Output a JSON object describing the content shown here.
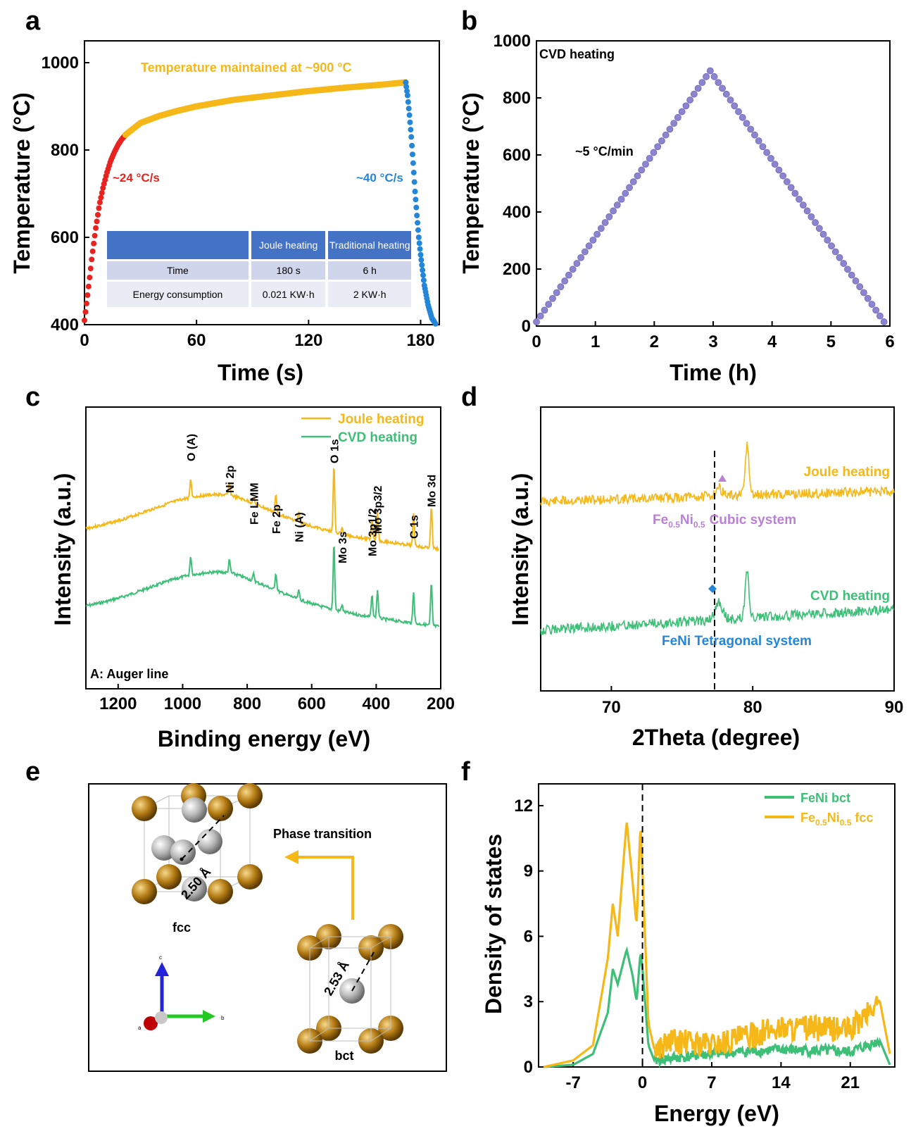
{
  "panels": {
    "a": "a",
    "b": "b",
    "c": "c",
    "d": "d",
    "e": "e",
    "f": "f"
  },
  "chart_data": [
    {
      "panel": "a",
      "type": "scatter",
      "xlabel": "Time (s)",
      "ylabel": "Temperature (°C)",
      "xlim": [
        0,
        190
      ],
      "ylim": [
        400,
        1050
      ],
      "xticks": [
        "0",
        "60",
        "120",
        "180"
      ],
      "yticks": [
        "400",
        "600",
        "800",
        "1000"
      ],
      "annotations": {
        "maintained": "Temperature maintained at ~900 °C",
        "heat_rate": "~24 °C/s",
        "cool_rate": "~40 °C/s"
      },
      "series": [
        {
          "name": "heating",
          "color": "#e8231f",
          "x": [
            0,
            2,
            4,
            6,
            8,
            10,
            12,
            14,
            16,
            18,
            20,
            22
          ],
          "y": [
            410,
            480,
            555,
            620,
            675,
            715,
            748,
            775,
            795,
            812,
            825,
            835
          ]
        },
        {
          "name": "holding",
          "color": "#f5b818",
          "x": [
            22,
            30,
            40,
            50,
            60,
            80,
            100,
            120,
            140,
            160,
            172
          ],
          "y": [
            835,
            862,
            878,
            890,
            900,
            915,
            925,
            935,
            943,
            950,
            955
          ]
        },
        {
          "name": "cooling",
          "color": "#2386d8",
          "x": [
            172,
            173,
            174,
            175,
            176,
            177,
            178,
            179,
            180,
            182,
            184,
            186,
            188
          ],
          "y": [
            955,
            925,
            880,
            830,
            770,
            705,
            650,
            600,
            560,
            490,
            445,
            415,
            402
          ]
        }
      ],
      "table": {
        "headers": [
          "",
          "Joule heating",
          "Traditional heating"
        ],
        "rows": [
          [
            "Time",
            "180 s",
            "6 h"
          ],
          [
            "Energy consumption",
            "0.021 KW·h",
            "2 KW·h"
          ]
        ]
      }
    },
    {
      "panel": "b",
      "type": "scatter",
      "xlabel": "Time (h)",
      "ylabel": "Temperature (°C)",
      "xlim": [
        0,
        6
      ],
      "ylim": [
        0,
        1000
      ],
      "xticks": [
        "0",
        "1",
        "2",
        "3",
        "4",
        "5",
        "6"
      ],
      "yticks": [
        "0",
        "200",
        "400",
        "600",
        "800",
        "1000"
      ],
      "legend": "CVD heating",
      "annotation": "~5 °C/min",
      "series": [
        {
          "name": "CVD heating",
          "color": "#8b84cf",
          "x": [
            0,
            2.95,
            5.9
          ],
          "y": [
            15,
            895,
            15
          ]
        }
      ]
    },
    {
      "panel": "c",
      "type": "line",
      "xlabel": "Binding energy (eV)",
      "ylabel": "Intensity (a.u.)",
      "xlim": [
        1300,
        200
      ],
      "xticks": [
        "1200",
        "1000",
        "800",
        "600",
        "400",
        "200"
      ],
      "note": "A: Auger line",
      "peaks": [
        "O (A)",
        "Ni 2p",
        "Fe LMM",
        "Fe 2p",
        "Ni (A)",
        "O 1s",
        "Mo 3s",
        "Mo 3p1/2",
        "Mo 3p3/2",
        "C 1s",
        "Mo 3d"
      ],
      "peak_positions": [
        975,
        855,
        780,
        711,
        640,
        531,
        506,
        413,
        396,
        284,
        229
      ],
      "series": [
        {
          "name": "Joule heating",
          "color": "#f5b818"
        },
        {
          "name": "CVD heating",
          "color": "#3dbf78"
        }
      ]
    },
    {
      "panel": "d",
      "type": "line",
      "xlabel": "2Theta (degree)",
      "ylabel": "Intensity (a.u.)",
      "xlim": [
        65,
        90
      ],
      "xticks": [
        "70",
        "80",
        "90"
      ],
      "dashed_line_x": 77.3,
      "labels": {
        "cubic_phase": "Fe",
        "cubic_sub": "0.5",
        "cubic_ni": "Ni",
        "cubic_sub2": "0.5",
        "cubic_system": "Cubic system",
        "tetragonal": "FeNi Tetragonal system"
      },
      "peak_positions": [
        77.6,
        79.6
      ],
      "series": [
        {
          "name": "Joule heating",
          "color": "#f5b818"
        },
        {
          "name": "CVD heating",
          "color": "#3dbf78"
        }
      ]
    },
    {
      "panel": "f",
      "type": "line",
      "xlabel": "Energy (eV)",
      "ylabel": "Density of states",
      "xlim": [
        -10.5,
        25.5
      ],
      "ylim": [
        0,
        13
      ],
      "xticks": [
        "-7",
        "0",
        "7",
        "14",
        "21"
      ],
      "yticks": [
        "0",
        "3",
        "6",
        "9",
        "12"
      ],
      "fermi_level": 0,
      "series": [
        {
          "name": "FeNi bct",
          "color": "#3dbf78",
          "x": [
            -10,
            -7,
            -5,
            -3.5,
            -3,
            -2.5,
            -1.6,
            -1,
            -0.6,
            -0.2,
            0,
            0.6,
            1.2,
            3,
            7,
            14,
            21,
            24,
            25
          ],
          "y": [
            0,
            0.1,
            0.6,
            2.5,
            4.5,
            3.8,
            5.4,
            4.2,
            3.0,
            5.3,
            4.5,
            1.0,
            0.3,
            0.4,
            0.6,
            0.8,
            0.7,
            1.2,
            0.1
          ]
        },
        {
          "name": "Fe0.5Ni0.5 fcc",
          "color": "#f5b818",
          "x": [
            -10,
            -7,
            -5,
            -3.5,
            -3,
            -2.5,
            -1.6,
            -1,
            -0.6,
            -0.2,
            0,
            0.6,
            1.2,
            3,
            7,
            14,
            21,
            24,
            25
          ],
          "y": [
            0,
            0.3,
            1.0,
            5.0,
            7.5,
            6.0,
            11.3,
            8.5,
            6.5,
            11.2,
            9.0,
            2.0,
            0.8,
            1.2,
            1.0,
            1.8,
            1.7,
            3.0,
            0.6
          ]
        }
      ],
      "legend": {
        "bct": "FeNi bct",
        "fcc_fe": "Fe",
        "fcc_sub": "0.5",
        "fcc_ni": "Ni",
        "fcc_sub2": "0.5",
        "fcc_rest": " fcc"
      }
    }
  ],
  "panel_e": {
    "transition_label": "Phase transition",
    "fcc_label": "fcc",
    "bct_label": "bct",
    "fcc_distance": "2.50 Å",
    "bct_distance": "2.53 Å",
    "axis_c": "c",
    "axis_b": "b",
    "axis_a": "a"
  }
}
